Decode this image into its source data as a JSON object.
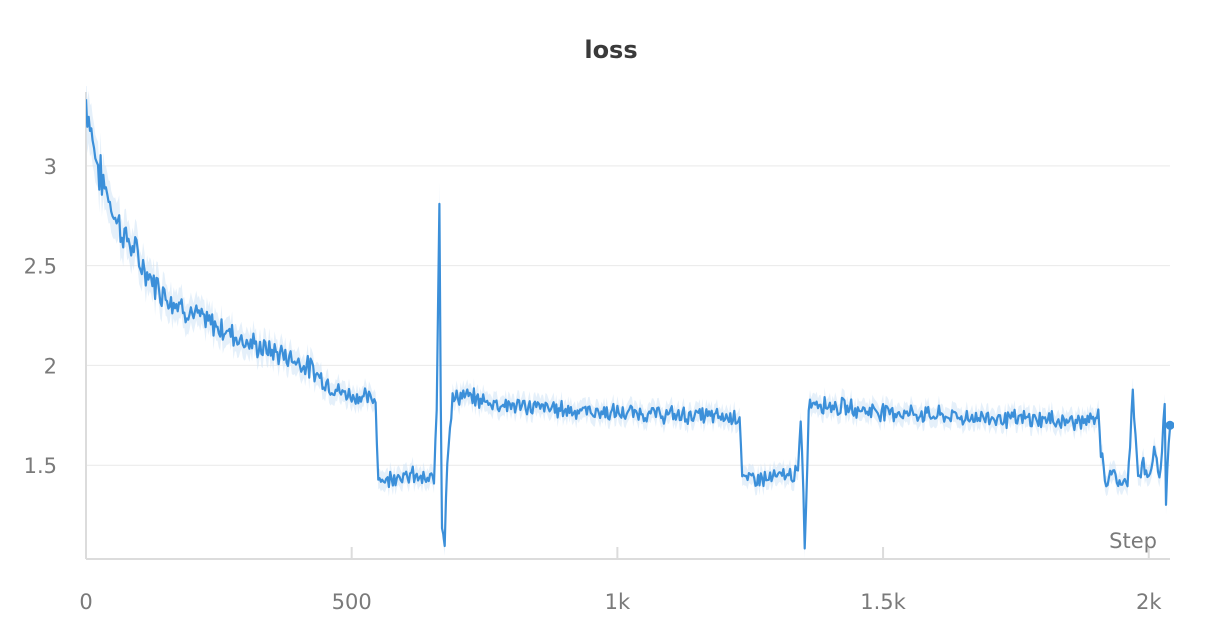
{
  "chart_data": {
    "type": "line",
    "title": "loss",
    "xlabel": "Step",
    "ylabel": "",
    "xlim": [
      0,
      2040
    ],
    "ylim": [
      1.03,
      3.37
    ],
    "x_ticks": [
      0,
      500,
      1000,
      1500,
      2000
    ],
    "x_tick_labels": [
      "0",
      "500",
      "1k",
      "1.5k",
      "2k"
    ],
    "y_ticks": [
      1.5,
      2,
      2.5,
      3
    ],
    "y_tick_labels": [
      "1.5",
      "2",
      "2.5",
      "3"
    ],
    "grid": true,
    "legend": "none",
    "colors": {
      "line": "#3b8fd9",
      "band": "#cfe3f6"
    },
    "series": [
      {
        "color": "#3b8fd9",
        "x": [
          0,
          10,
          20,
          30,
          40,
          50,
          60,
          70,
          80,
          90,
          100,
          120,
          140,
          160,
          180,
          200,
          225,
          250,
          275,
          300,
          325,
          350,
          375,
          400,
          425,
          450,
          475,
          500,
          525,
          545,
          550,
          560,
          575,
          590,
          600,
          610,
          625,
          640,
          655,
          660,
          665,
          668,
          670,
          675,
          680,
          685,
          690,
          700,
          720,
          750,
          800,
          850,
          900,
          950,
          1000,
          1050,
          1100,
          1150,
          1200,
          1230,
          1235,
          1240,
          1260,
          1280,
          1300,
          1320,
          1340,
          1345,
          1350,
          1353,
          1355,
          1360,
          1370,
          1400,
          1450,
          1500,
          1550,
          1600,
          1650,
          1700,
          1750,
          1800,
          1850,
          1900,
          1905,
          1910,
          1920,
          1930,
          1940,
          1950,
          1960,
          1970,
          1980,
          1990,
          2000,
          2010,
          2020,
          2030,
          2033,
          2036,
          2040
        ],
        "values": [
          3.33,
          3.18,
          3.02,
          2.92,
          2.87,
          2.78,
          2.72,
          2.66,
          2.62,
          2.58,
          2.52,
          2.44,
          2.38,
          2.33,
          2.3,
          2.26,
          2.22,
          2.19,
          2.16,
          2.12,
          2.09,
          2.07,
          2.05,
          2.02,
          1.98,
          1.92,
          1.87,
          1.85,
          1.84,
          1.82,
          1.45,
          1.42,
          1.44,
          1.46,
          1.43,
          1.45,
          1.44,
          1.42,
          1.43,
          1.78,
          2.85,
          1.7,
          1.22,
          1.12,
          1.55,
          1.7,
          1.82,
          1.85,
          1.84,
          1.82,
          1.8,
          1.79,
          1.78,
          1.77,
          1.76,
          1.76,
          1.75,
          1.75,
          1.74,
          1.75,
          1.45,
          1.42,
          1.44,
          1.43,
          1.44,
          1.45,
          1.46,
          1.7,
          1.38,
          1.06,
          1.25,
          1.8,
          1.82,
          1.8,
          1.78,
          1.77,
          1.76,
          1.75,
          1.74,
          1.74,
          1.73,
          1.73,
          1.72,
          1.72,
          1.78,
          1.55,
          1.42,
          1.48,
          1.4,
          1.43,
          1.38,
          1.88,
          1.45,
          1.5,
          1.42,
          1.58,
          1.4,
          1.82,
          1.25,
          1.55,
          1.7
        ]
      }
    ]
  }
}
